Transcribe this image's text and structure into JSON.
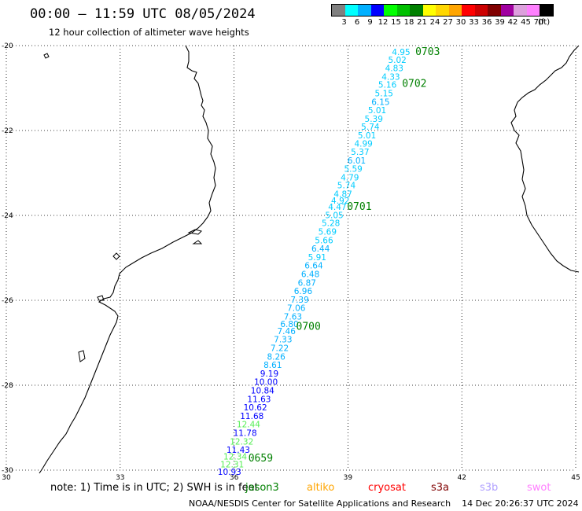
{
  "header": {
    "title": "00:00 – 11:59 UTC 08/05/2024",
    "subtitle": "12 hour collection of altimeter wave heights"
  },
  "legend": {
    "colors": [
      "#808080",
      "#00ffff",
      "#00b0ff",
      "#0000ff",
      "#00ff00",
      "#00c000",
      "#008000",
      "#ffff00",
      "#ffd700",
      "#ffa500",
      "#ff0000",
      "#cc0000",
      "#800000",
      "#a000a0",
      "#dda0dd",
      "#ff80ff",
      "#000000"
    ],
    "labels": [
      "3",
      "6",
      "9",
      "12",
      "15",
      "18",
      "21",
      "24",
      "27",
      "30",
      "33",
      "36",
      "39",
      "42",
      "45",
      "70",
      "(ft)"
    ]
  },
  "map": {
    "lon_range": [
      30,
      45
    ],
    "lat_range": [
      -30,
      -20
    ],
    "x_ticks": [
      "30",
      "33",
      "36",
      "39",
      "42",
      "45"
    ],
    "y_ticks": [
      "-20",
      "-22",
      "-24",
      "-26",
      "-28",
      "-30"
    ],
    "grid": true,
    "track": [
      {
        "v": "4.95",
        "lat": -20.15,
        "lon": 40.4
      },
      {
        "v": "5.02",
        "lat": -20.33,
        "lon": 40.3
      },
      {
        "v": "4.83",
        "lat": -20.53,
        "lon": 40.22
      },
      {
        "v": "4.33",
        "lat": -20.73,
        "lon": 40.13
      },
      {
        "v": "5.16",
        "lat": -20.92,
        "lon": 40.04
      },
      {
        "v": "5.15",
        "lat": -21.12,
        "lon": 39.95
      },
      {
        "v": "6.15",
        "lat": -21.32,
        "lon": 39.86
      },
      {
        "v": "5.01",
        "lat": -21.52,
        "lon": 39.77
      },
      {
        "v": "5.39",
        "lat": -21.72,
        "lon": 39.68
      },
      {
        "v": "5.74",
        "lat": -21.91,
        "lon": 39.59
      },
      {
        "v": "5.01",
        "lat": -22.11,
        "lon": 39.5
      },
      {
        "v": "4.99",
        "lat": -22.31,
        "lon": 39.41
      },
      {
        "v": "5.37",
        "lat": -22.5,
        "lon": 39.32
      },
      {
        "v": "6.01",
        "lat": -22.7,
        "lon": 39.23
      },
      {
        "v": "5.59",
        "lat": -22.9,
        "lon": 39.14
      },
      {
        "v": "4.79",
        "lat": -23.1,
        "lon": 39.05
      },
      {
        "v": "5.74",
        "lat": -23.29,
        "lon": 38.96
      },
      {
        "v": "4.87",
        "lat": -23.49,
        "lon": 38.87
      },
      {
        "v": "4.92",
        "lat": -23.65,
        "lon": 38.8
      },
      {
        "v": "4.47",
        "lat": -23.8,
        "lon": 38.72
      },
      {
        "v": "5.05",
        "lat": -23.99,
        "lon": 38.64
      },
      {
        "v": "5.28",
        "lat": -24.18,
        "lon": 38.55
      },
      {
        "v": "5.69",
        "lat": -24.38,
        "lon": 38.46
      },
      {
        "v": "5.66",
        "lat": -24.58,
        "lon": 38.37
      },
      {
        "v": "6.44",
        "lat": -24.78,
        "lon": 38.28
      },
      {
        "v": "5.91",
        "lat": -24.98,
        "lon": 38.19
      },
      {
        "v": "6.64",
        "lat": -25.18,
        "lon": 38.1
      },
      {
        "v": "6.48",
        "lat": -25.38,
        "lon": 38.01
      },
      {
        "v": "6.87",
        "lat": -25.58,
        "lon": 37.92
      },
      {
        "v": "6.96",
        "lat": -25.78,
        "lon": 37.82
      },
      {
        "v": "7.39",
        "lat": -25.98,
        "lon": 37.73
      },
      {
        "v": "7.06",
        "lat": -26.18,
        "lon": 37.64
      },
      {
        "v": "7.63",
        "lat": -26.38,
        "lon": 37.55
      },
      {
        "v": "6.80",
        "lat": -26.56,
        "lon": 37.46
      },
      {
        "v": "7.46",
        "lat": -26.72,
        "lon": 37.38
      },
      {
        "v": "7.33",
        "lat": -26.92,
        "lon": 37.29
      },
      {
        "v": "7.22",
        "lat": -27.12,
        "lon": 37.2
      },
      {
        "v": "8.26",
        "lat": -27.32,
        "lon": 37.11
      },
      {
        "v": "8.61",
        "lat": -27.52,
        "lon": 37.02
      },
      {
        "v": "9.19",
        "lat": -27.72,
        "lon": 36.93
      },
      {
        "v": "10.00",
        "lat": -27.92,
        "lon": 36.84
      },
      {
        "v": "10.84",
        "lat": -28.12,
        "lon": 36.75
      },
      {
        "v": "11.63",
        "lat": -28.32,
        "lon": 36.66
      },
      {
        "v": "10.62",
        "lat": -28.52,
        "lon": 36.56
      },
      {
        "v": "11.68",
        "lat": -28.72,
        "lon": 36.47
      },
      {
        "v": "12.44",
        "lat": -28.92,
        "lon": 36.38
      },
      {
        "v": "11.78",
        "lat": -29.12,
        "lon": 36.29
      },
      {
        "v": "12.32",
        "lat": -29.32,
        "lon": 36.2
      },
      {
        "v": "11.43",
        "lat": -29.52,
        "lon": 36.11
      },
      {
        "v": "12.34",
        "lat": -29.68,
        "lon": 36.03
      },
      {
        "v": "12.31",
        "lat": -29.86,
        "lon": 35.95
      },
      {
        "v": "10.93",
        "lat": -30.04,
        "lon": 35.88
      }
    ],
    "time_labels": [
      {
        "t": "0703",
        "lat": -20.15,
        "lon": 41.1
      },
      {
        "t": "0702",
        "lat": -20.9,
        "lon": 40.75
      },
      {
        "t": "0701",
        "lat": -23.8,
        "lon": 39.3
      },
      {
        "t": "0700",
        "lat": -26.62,
        "lon": 37.96
      },
      {
        "t": "0659",
        "lat": -29.72,
        "lon": 36.7
      }
    ]
  },
  "note": {
    "text": "note:  1) Time is in UTC; 2) SWH is in feet",
    "satellites": [
      {
        "name": "jason3",
        "color": "#008000"
      },
      {
        "name": "altiko",
        "color": "#ffa500"
      },
      {
        "name": "cryosat",
        "color": "#ff0000"
      },
      {
        "name": "s3a",
        "color": "#800000"
      },
      {
        "name": "s3b",
        "color": "#b0a0ff"
      },
      {
        "name": "swot",
        "color": "#ff80ff"
      }
    ]
  },
  "footer": {
    "credit": "NOAA/NESDIS Center for Satellite Applications and Research",
    "timestamp": "14 Dec 20:26:37 UTC 2024"
  }
}
